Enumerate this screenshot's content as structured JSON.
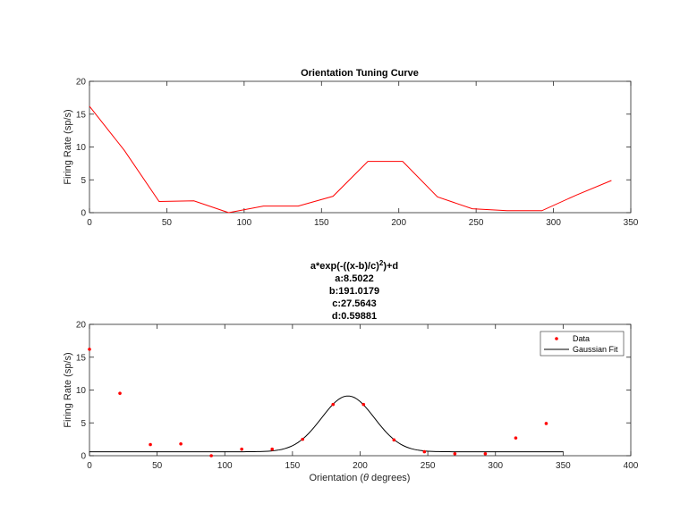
{
  "chart_data": [
    {
      "type": "line",
      "title": "Orientation Tuning Curve",
      "xlabel": "",
      "ylabel": "Firing Rate (sp/s)",
      "xlim": [
        0,
        350
      ],
      "ylim": [
        0,
        20
      ],
      "xticks": [
        "0",
        "50",
        "100",
        "150",
        "200",
        "250",
        "300",
        "350"
      ],
      "yticks": [
        "0",
        "5",
        "10",
        "15",
        "20"
      ],
      "color": "#ff0000",
      "series": [
        {
          "x": [
            0,
            22.5,
            45,
            67.5,
            90,
            112.5,
            135,
            157.5,
            180,
            202.5,
            225,
            247.5,
            270,
            292.5,
            315,
            337.5
          ],
          "values": [
            16.2,
            9.5,
            1.7,
            1.8,
            0.0,
            1.0,
            1.0,
            2.5,
            7.8,
            7.8,
            2.4,
            0.6,
            0.3,
            0.3,
            2.7,
            4.9
          ]
        }
      ]
    },
    {
      "type": "scatter",
      "title_lines": [
        "a*exp(-((x-b)/c)",
        "a:8.5022",
        "b:191.0179",
        "c:27.5643",
        "d:0.59881"
      ],
      "title_sup": "2",
      "title_tail": ")+d",
      "xlabel_prefix": "Orientation (",
      "xlabel_symbol": "θ",
      "xlabel_suffix": " degrees)",
      "ylabel": "Firing Rate (sp/s)",
      "xlim": [
        0,
        400
      ],
      "ylim": [
        0,
        20
      ],
      "xticks": [
        "0",
        "50",
        "100",
        "150",
        "200",
        "250",
        "300",
        "350",
        "400"
      ],
      "yticks": [
        "0",
        "5",
        "10",
        "15",
        "20"
      ],
      "series": [
        {
          "name": "Data",
          "color": "#ff0000",
          "x": [
            0,
            22.5,
            45,
            67.5,
            90,
            112.5,
            135,
            157.5,
            180,
            202.5,
            225,
            247.5,
            270,
            292.5,
            315,
            337.5
          ],
          "values": [
            16.2,
            9.5,
            1.7,
            1.8,
            0.0,
            1.0,
            1.0,
            2.5,
            7.8,
            7.8,
            2.4,
            0.6,
            0.3,
            0.3,
            2.7,
            4.9
          ]
        },
        {
          "name": "Gaussian Fit",
          "color": "#000000",
          "fit": {
            "a": 8.5022,
            "b": 191.0179,
            "c": 27.5643,
            "d": 0.59881,
            "x_range": [
              0,
              350
            ]
          }
        }
      ],
      "legend": "top-right"
    }
  ]
}
